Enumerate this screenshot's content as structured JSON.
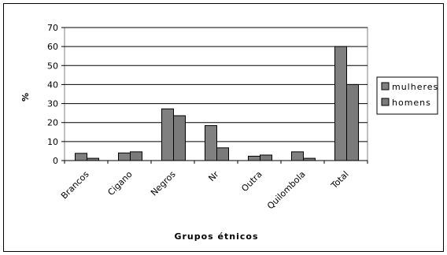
{
  "chart_data": {
    "type": "bar",
    "title": "",
    "xlabel": "Grupos étnicos",
    "ylabel": "%",
    "ylim": [
      0,
      70
    ],
    "yticks": [
      0,
      10,
      20,
      30,
      40,
      50,
      60,
      70
    ],
    "grid": true,
    "legend_position": "right",
    "categories": [
      "Brancos",
      "Cigano",
      "Negros",
      "Nr",
      "Outra",
      "Quilombola",
      "Total"
    ],
    "series": [
      {
        "name": "mulheres",
        "values": [
          3.8,
          4.0,
          27.2,
          18.4,
          2.3,
          4.6,
          60.0
        ],
        "color": "#808080"
      },
      {
        "name": "homens",
        "values": [
          1.2,
          4.6,
          23.6,
          6.7,
          2.9,
          1.2,
          40.0
        ],
        "color": "#7a7a7a"
      }
    ]
  }
}
